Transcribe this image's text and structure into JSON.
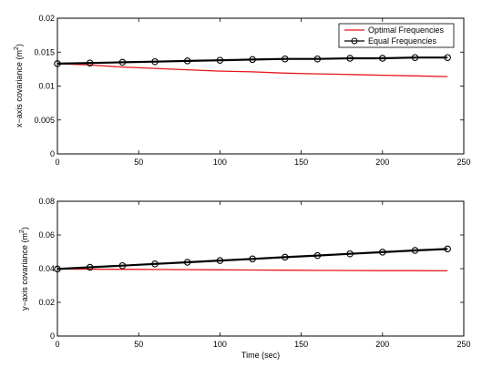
{
  "chart_data": [
    {
      "type": "line",
      "ylabel_text": "x−axis covariance (m",
      "ylabel_sup": "2",
      "ylabel_close": ")",
      "xlabel": "",
      "xlim": [
        0,
        250
      ],
      "ylim": [
        0,
        0.02
      ],
      "xticks": [
        "0",
        "50",
        "100",
        "150",
        "200",
        "250"
      ],
      "yticks": [
        "0",
        "0.005",
        "0.01",
        "0.015",
        "0.02"
      ],
      "legend_position": "top-right",
      "series": [
        {
          "name": "Optimal Frequencies",
          "color": "#e8141a",
          "marker": "none",
          "points": [
            [
              0,
              0.0133
            ],
            [
              20,
              0.0131
            ],
            [
              40,
              0.0128
            ],
            [
              60,
              0.0126
            ],
            [
              80,
              0.0124
            ],
            [
              100,
              0.0122
            ],
            [
              120,
              0.0121
            ],
            [
              140,
              0.0119
            ],
            [
              160,
              0.0118
            ],
            [
              180,
              0.0117
            ],
            [
              200,
              0.0116
            ],
            [
              220,
              0.0115
            ],
            [
              240,
              0.0114
            ]
          ]
        },
        {
          "name": "Equal Frequencies",
          "color": "#000000",
          "marker": "circle",
          "points": [
            [
              0,
              0.0133
            ],
            [
              20,
              0.0134
            ],
            [
              40,
              0.0135
            ],
            [
              60,
              0.0136
            ],
            [
              80,
              0.0137
            ],
            [
              100,
              0.0138
            ],
            [
              120,
              0.0139
            ],
            [
              140,
              0.014
            ],
            [
              160,
              0.014
            ],
            [
              180,
              0.0141
            ],
            [
              200,
              0.0141
            ],
            [
              220,
              0.0142
            ],
            [
              240,
              0.0142
            ]
          ]
        }
      ]
    },
    {
      "type": "line",
      "ylabel_text": "y−axis covariance (m",
      "ylabel_sup": "2",
      "ylabel_close": ")",
      "xlabel": "Time (sec)",
      "xlim": [
        0,
        250
      ],
      "ylim": [
        0,
        0.08
      ],
      "xticks": [
        "0",
        "50",
        "100",
        "150",
        "200",
        "250"
      ],
      "yticks": [
        "0",
        "0.02",
        "0.04",
        "0.06",
        "0.08"
      ],
      "series": [
        {
          "name": "Optimal Frequencies",
          "color": "#e8141a",
          "marker": "none",
          "points": [
            [
              0,
              0.0398
            ],
            [
              20,
              0.0397
            ],
            [
              40,
              0.0396
            ],
            [
              60,
              0.0395
            ],
            [
              80,
              0.0394
            ],
            [
              100,
              0.0393
            ],
            [
              120,
              0.0392
            ],
            [
              140,
              0.0391
            ],
            [
              160,
              0.039
            ],
            [
              180,
              0.0389
            ],
            [
              200,
              0.0388
            ],
            [
              220,
              0.0388
            ],
            [
              240,
              0.0387
            ]
          ]
        },
        {
          "name": "Equal Frequencies",
          "color": "#000000",
          "marker": "circle",
          "points": [
            [
              0,
              0.0398
            ],
            [
              20,
              0.0408
            ],
            [
              40,
              0.0418
            ],
            [
              60,
              0.0428
            ],
            [
              80,
              0.0438
            ],
            [
              100,
              0.0448
            ],
            [
              120,
              0.0458
            ],
            [
              140,
              0.0468
            ],
            [
              160,
              0.0478
            ],
            [
              180,
              0.0488
            ],
            [
              200,
              0.0498
            ],
            [
              220,
              0.0508
            ],
            [
              240,
              0.0517
            ]
          ]
        }
      ]
    }
  ]
}
